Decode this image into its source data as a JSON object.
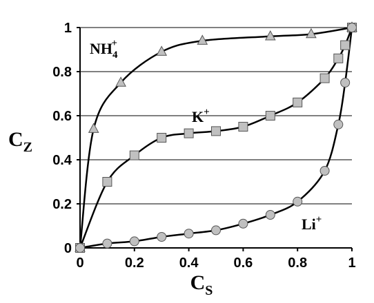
{
  "chart_data": {
    "type": "scatter",
    "title": "",
    "xlabel": {
      "main": "C",
      "sub": "S"
    },
    "ylabel": {
      "main": "C",
      "sub": "Z"
    },
    "xlim": [
      0,
      1
    ],
    "ylim": [
      0,
      1
    ],
    "x_ticks": [
      "0",
      "0.2",
      "0.4",
      "0.6",
      "0.8",
      "1"
    ],
    "y_ticks": [
      "0",
      "0.2",
      "0.4",
      "0.6",
      "0.8",
      "1"
    ],
    "y_tick_values": [
      0,
      0.2,
      0.4,
      0.6,
      0.8,
      1
    ],
    "x_tick_values": [
      0,
      0.2,
      0.4,
      0.6,
      0.8,
      1
    ],
    "grid": "horizontal",
    "colors": {
      "marker_fill": "#c0c0c0",
      "line": "#000000",
      "grid": "#000000"
    },
    "series": [
      {
        "name": "NH4+",
        "label_parts": {
          "main": "NH",
          "sub": "4",
          "sup": "+"
        },
        "marker": "triangle",
        "points": [
          [
            0,
            0
          ],
          [
            0.05,
            0.54
          ],
          [
            0.15,
            0.75
          ],
          [
            0.3,
            0.89
          ],
          [
            0.45,
            0.94
          ],
          [
            0.7,
            0.96
          ],
          [
            0.85,
            0.97
          ],
          [
            1,
            1
          ]
        ]
      },
      {
        "name": "K+",
        "label_parts": {
          "main": "K",
          "sub": "",
          "sup": "+"
        },
        "marker": "square",
        "points": [
          [
            0,
            0
          ],
          [
            0.1,
            0.3
          ],
          [
            0.2,
            0.42
          ],
          [
            0.3,
            0.5
          ],
          [
            0.4,
            0.52
          ],
          [
            0.5,
            0.53
          ],
          [
            0.6,
            0.55
          ],
          [
            0.7,
            0.6
          ],
          [
            0.8,
            0.66
          ],
          [
            0.9,
            0.77
          ],
          [
            0.95,
            0.86
          ],
          [
            0.975,
            0.92
          ],
          [
            1,
            1
          ]
        ]
      },
      {
        "name": "Li+",
        "label_parts": {
          "main": "Li",
          "sub": "",
          "sup": "+"
        },
        "marker": "circle",
        "points": [
          [
            0,
            0
          ],
          [
            0.1,
            0.02
          ],
          [
            0.2,
            0.03
          ],
          [
            0.3,
            0.05
          ],
          [
            0.4,
            0.065
          ],
          [
            0.5,
            0.08
          ],
          [
            0.6,
            0.11
          ],
          [
            0.7,
            0.15
          ],
          [
            0.8,
            0.21
          ],
          [
            0.9,
            0.35
          ],
          [
            0.95,
            0.56
          ],
          [
            0.975,
            0.75
          ],
          [
            1,
            1
          ]
        ]
      }
    ]
  }
}
